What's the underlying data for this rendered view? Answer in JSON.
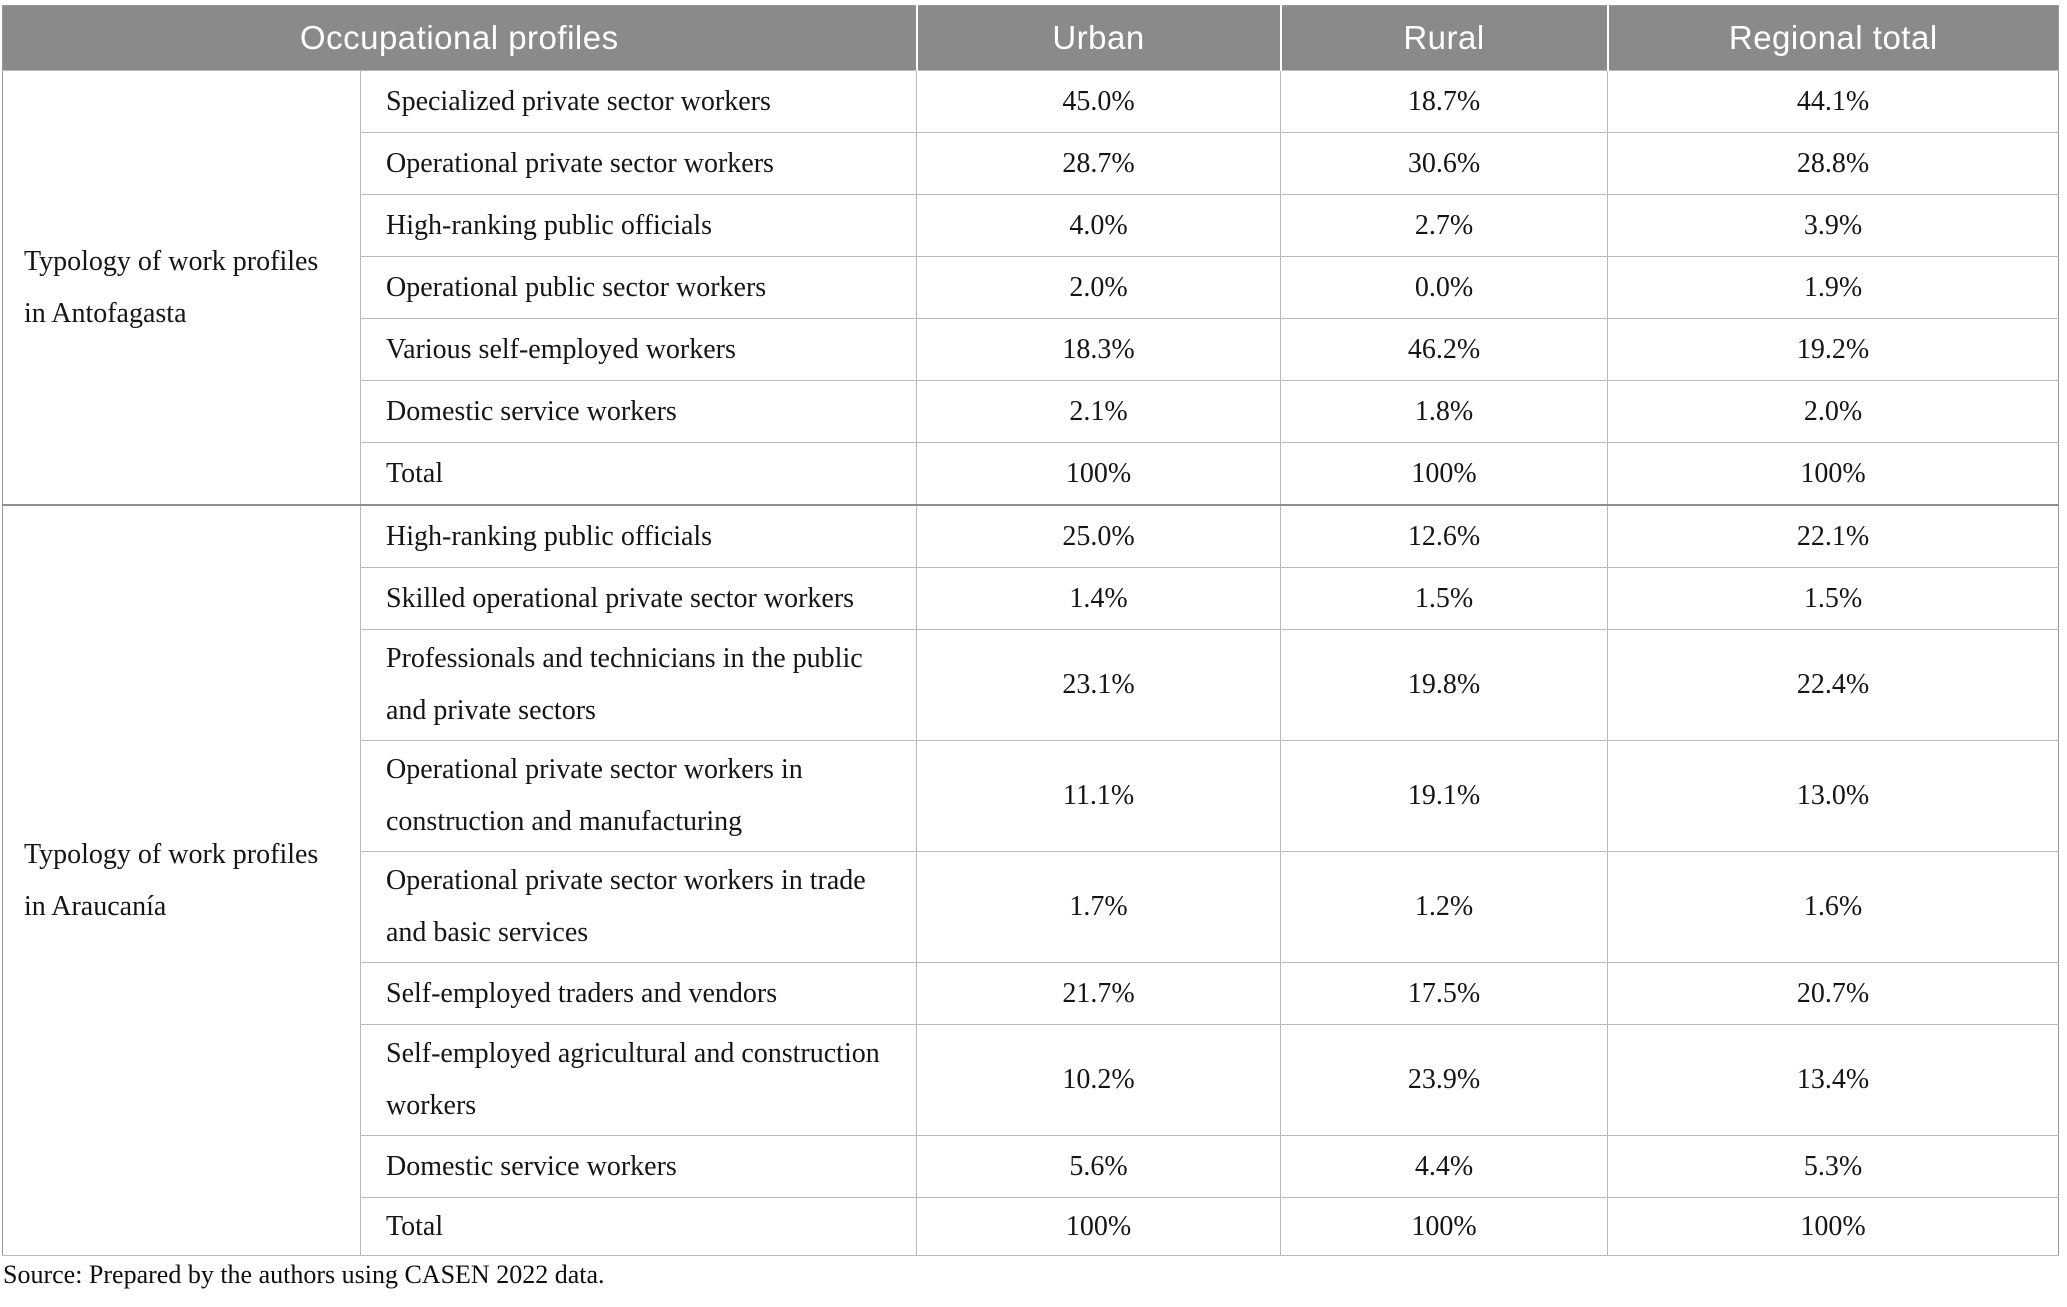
{
  "header": {
    "profiles": "Occupational profiles",
    "urban": "Urban",
    "rural": "Rural",
    "regional_total": "Regional total"
  },
  "sections": [
    {
      "region_label": "Typology of work profiles\nin Antofagasta",
      "rows": [
        {
          "label": "Specialized private sector workers",
          "urban": "45.0%",
          "rural": "18.7%",
          "regional": "44.1%"
        },
        {
          "label": "Operational private sector workers",
          "urban": "28.7%",
          "rural": "30.6%",
          "regional": "28.8%"
        },
        {
          "label": "High-ranking public officials",
          "urban": "4.0%",
          "rural": "2.7%",
          "regional": "3.9%"
        },
        {
          "label": "Operational public sector workers",
          "urban": "2.0%",
          "rural": "0.0%",
          "regional": "1.9%"
        },
        {
          "label": "Various self-employed workers",
          "urban": "18.3%",
          "rural": "46.2%",
          "regional": "19.2%"
        },
        {
          "label": "Domestic service workers",
          "urban": "2.1%",
          "rural": "1.8%",
          "regional": "2.0%"
        },
        {
          "label": "Total",
          "urban": "100%",
          "rural": "100%",
          "regional": "100%"
        }
      ]
    },
    {
      "region_label": "Typology of work profiles\nin Araucanía",
      "rows": [
        {
          "label": "High-ranking public officials",
          "urban": "25.0%",
          "rural": "12.6%",
          "regional": "22.1%"
        },
        {
          "label": "Skilled operational private sector workers",
          "urban": "1.4%",
          "rural": "1.5%",
          "regional": "1.5%"
        },
        {
          "label": "Professionals and technicians in the public\nand private sectors",
          "urban": "23.1%",
          "rural": "19.8%",
          "regional": "22.4%"
        },
        {
          "label": "Operational private sector workers in\nconstruction and manufacturing",
          "urban": "11.1%",
          "rural": "19.1%",
          "regional": "13.0%"
        },
        {
          "label": "Operational private sector workers in trade\nand basic services",
          "urban": "1.7%",
          "rural": "1.2%",
          "regional": "1.6%"
        },
        {
          "label": "Self-employed traders and vendors",
          "urban": "21.7%",
          "rural": "17.5%",
          "regional": "20.7%"
        },
        {
          "label": "Self-employed agricultural and construction\nworkers",
          "urban": "10.2%",
          "rural": "23.9%",
          "regional": "13.4%"
        },
        {
          "label": "Domestic service workers",
          "urban": "5.6%",
          "rural": "4.4%",
          "regional": "5.3%"
        },
        {
          "label": "Total",
          "urban": "100%",
          "rural": "100%",
          "regional": "100%"
        }
      ]
    }
  ],
  "source_note": "Source: Prepared by the authors using CASEN 2022 data.",
  "colors": {
    "header_background": "#8a8a8a",
    "header_text": "#ffffff",
    "grid_line": "#b9b9b9",
    "outer_border": "#9a9a9a",
    "body_text": "#151515"
  }
}
